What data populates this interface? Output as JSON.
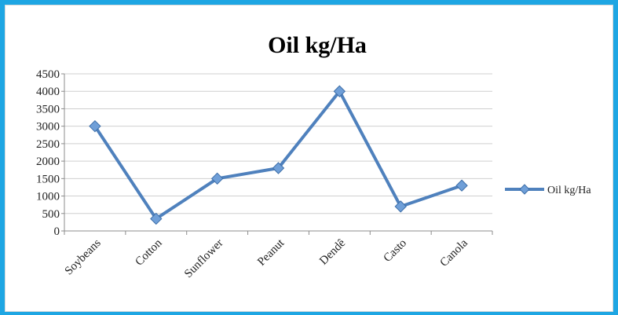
{
  "chart_data": {
    "type": "line",
    "title": "Oil kg/Ha",
    "categories": [
      "Soybeans",
      "Cotton",
      "Sunflower",
      "Peanut",
      "Dendê",
      "Casto",
      "Canola"
    ],
    "series": [
      {
        "name": "Oil kg/Ha",
        "values": [
          3000,
          350,
          1500,
          1800,
          4000,
          700,
          1300
        ],
        "color": "#4f81bd"
      }
    ],
    "ylim": [
      0,
      4500
    ],
    "yticks": [
      0,
      500,
      1000,
      1500,
      2000,
      2500,
      3000,
      3500,
      4000,
      4500
    ],
    "grid": true,
    "legend": "right"
  }
}
